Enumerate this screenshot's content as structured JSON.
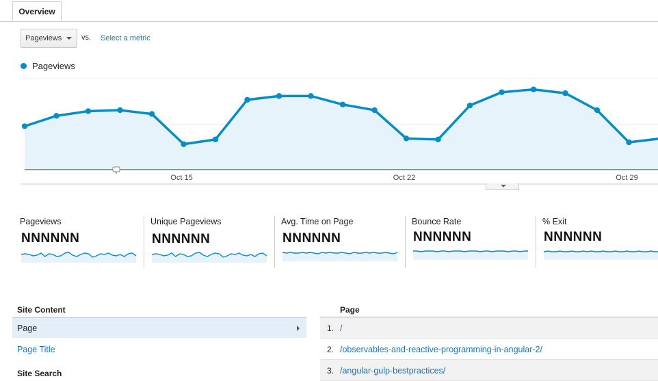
{
  "tabs": [
    {
      "label": "Overview"
    }
  ],
  "metric_selector": {
    "selected": "Pageviews",
    "vs_label": "vs.",
    "select_metric_link": "Select a metric"
  },
  "legend": {
    "label": "Pageviews",
    "color": "#058dc7"
  },
  "chart_data": {
    "type": "area",
    "series": [
      {
        "name": "Pageviews",
        "values": [
          0.46,
          0.57,
          0.62,
          0.63,
          0.59,
          0.27,
          0.32,
          0.74,
          0.78,
          0.78,
          0.69,
          0.63,
          0.33,
          0.32,
          0.68,
          0.82,
          0.85,
          0.81,
          0.63,
          0.29,
          0.33
        ]
      }
    ],
    "x_tick_labels": [
      "Oct 15",
      "Oct 22",
      "Oct 29"
    ],
    "grid": true,
    "note": "y-axis labels not visible; values are relative heights"
  },
  "scorecards": [
    {
      "name": "Pageviews",
      "value": "NNNNNN"
    },
    {
      "name": "Unique Pageviews",
      "value": "NNNNNN"
    },
    {
      "name": "Avg. Time on Page",
      "value": "NNNNNN"
    },
    {
      "name": "Bounce Rate",
      "value": "NNNNNN"
    },
    {
      "name": "% Exit",
      "value": "NNNNNN"
    }
  ],
  "site_content": {
    "heading": "Site Content",
    "selected_item": "Page",
    "item2": "Page Title",
    "next_heading": "Site Search"
  },
  "page_table": {
    "header": "Page",
    "rows": [
      {
        "rank": "1.",
        "page": "/"
      },
      {
        "rank": "2.",
        "page": "/observables-and-reactive-programming-in-angular-2/"
      },
      {
        "rank": "3.",
        "page": "/angular-gulp-bestpractices/"
      }
    ]
  }
}
